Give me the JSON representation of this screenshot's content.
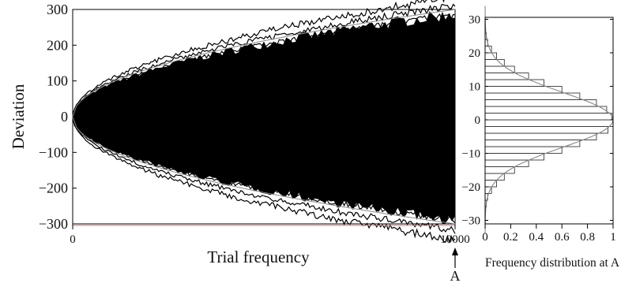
{
  "chart_data": [
    {
      "type": "line",
      "description_kind": "random-walk deviations",
      "xlabel": "Trial frequency",
      "ylabel": "Deviation",
      "xlim": [
        0,
        10000
      ],
      "ylim": [
        -350,
        350
      ],
      "x_ticks": [
        "0",
        "10000"
      ],
      "y_ticks": [
        "300",
        "200",
        "100",
        "0",
        "−100",
        "−200",
        "−300"
      ],
      "y_tick_values": [
        300,
        200,
        100,
        0,
        -100,
        -200,
        -300
      ],
      "envelope": {
        "upper_end": 300,
        "lower_end": -300
      },
      "approx_extremes": {
        "max_end": 335,
        "min_end": -345
      },
      "marker": {
        "label": "A",
        "x": 10000
      },
      "colors": {
        "ink": "#000000",
        "envelope": "#888888",
        "axis_mark": "#c08080"
      }
    },
    {
      "type": "bar",
      "orientation": "horizontal",
      "xlabel": "Frequency distribution at A",
      "xlim": [
        0,
        1
      ],
      "ylim": [
        -37,
        37
      ],
      "x_ticks": [
        "0",
        "0.2",
        "0.4",
        "0.6",
        "0.8",
        "1"
      ],
      "x_tick_values": [
        0,
        0.2,
        0.4,
        0.6,
        0.8,
        1
      ],
      "y_ticks": [
        "30",
        "20",
        "10",
        "0",
        "−10",
        "−20",
        "−30"
      ],
      "y_tick_values": [
        30,
        20,
        10,
        0,
        -10,
        -20,
        -30
      ],
      "bin_width": 2,
      "bins": [
        -25,
        -23,
        -21,
        -19,
        -17,
        -15,
        -13,
        -11,
        -9,
        -7,
        -5,
        -3,
        -1,
        1,
        3,
        5,
        7,
        9,
        11,
        13,
        15,
        17,
        19,
        21,
        23,
        25
      ],
      "values": [
        0.01,
        0.02,
        0.05,
        0.09,
        0.15,
        0.23,
        0.34,
        0.46,
        0.6,
        0.74,
        0.87,
        0.96,
        1.0,
        0.99,
        0.95,
        0.87,
        0.74,
        0.6,
        0.46,
        0.34,
        0.23,
        0.15,
        0.09,
        0.05,
        0.02,
        0.01
      ]
    }
  ]
}
